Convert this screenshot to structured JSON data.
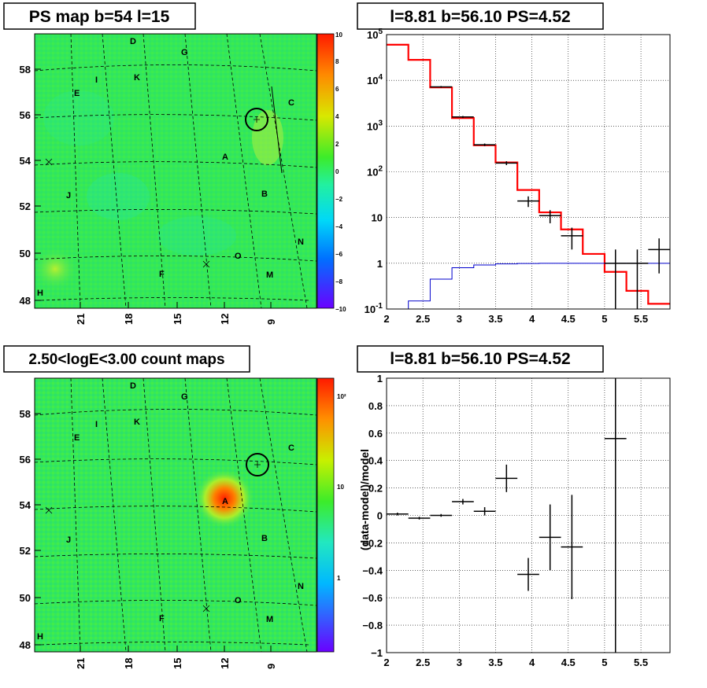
{
  "colors": {
    "map_background": "#33e85a",
    "data_points": "#000000",
    "model_line": "#ff0000",
    "background_line": "#0000cc"
  },
  "panels": {
    "ps_map": {
      "title": "PS map b=54 l=15",
      "colorbar_ticks": [
        "10",
        "8",
        "6",
        "4",
        "2",
        "0",
        "−2",
        "−4",
        "−6",
        "−8",
        "−10"
      ],
      "y_ticks": [
        "58",
        "56",
        "54",
        "52",
        "50",
        "48"
      ],
      "x_ticks": [
        "21",
        "18",
        "15",
        "12",
        "9"
      ],
      "region_labels": [
        "D",
        "G",
        "K",
        "I",
        "E",
        "C",
        "A",
        "J",
        "B",
        "N",
        "O",
        "F",
        "M",
        "H"
      ]
    },
    "spectrum": {
      "title": "l=8.81 b=56.10 PS=4.52"
    },
    "count_map": {
      "title": "2.50<logE<3.00 count maps",
      "colorbar_ticks": [
        "10²",
        "10",
        "1"
      ],
      "y_ticks": [
        "58",
        "56",
        "54",
        "52",
        "50",
        "48"
      ],
      "x_ticks": [
        "21",
        "18",
        "15",
        "12",
        "9"
      ],
      "region_labels": [
        "D",
        "G",
        "K",
        "I",
        "E",
        "C",
        "A",
        "J",
        "B",
        "N",
        "O",
        "F",
        "M",
        "H"
      ]
    },
    "residual": {
      "title": "l=8.81 b=56.10 PS=4.52"
    }
  },
  "chart_data": [
    {
      "type": "line",
      "panel": "spectrum",
      "title": "l=8.81 b=56.10 PS=4.52",
      "xlabel": "",
      "ylabel": "",
      "xlim": [
        2,
        5.9
      ],
      "ylim": [
        0.1,
        100000
      ],
      "y_scale": "log",
      "grid": true,
      "x_tick_labels": [
        "2",
        "2.5",
        "3",
        "3.5",
        "4",
        "4.5",
        "5",
        "5.5"
      ],
      "y_tick_labels": [
        "10^-1",
        "1",
        "10",
        "10^2",
        "10^3",
        "10^4",
        "10^5"
      ],
      "series": [
        {
          "style": "step",
          "bin_edges": [
            2.0,
            2.3,
            2.6,
            2.9,
            3.2,
            3.5,
            3.8,
            4.1,
            4.4,
            4.7,
            5.0,
            5.3,
            5.6,
            5.9
          ],
          "values": [
            60000,
            28000,
            7000,
            1500,
            380,
            160,
            40,
            13,
            5.5,
            1.6,
            0.65,
            0.25,
            0.13
          ]
        },
        {
          "style": "step",
          "bin_edges": [
            2.0,
            2.3,
            2.6,
            2.9,
            3.2,
            3.5,
            3.8,
            4.1,
            4.4,
            4.7,
            5.0,
            5.3,
            5.6,
            5.9
          ],
          "values": [
            0.1,
            0.15,
            0.45,
            0.8,
            0.92,
            0.97,
            0.99,
            1.0,
            1.0,
            1.0,
            1.0,
            1.0,
            1.0
          ]
        },
        {
          "style": "errorbar",
          "x": [
            2.75,
            3.05,
            3.35,
            3.65,
            3.95,
            4.25,
            4.55,
            5.15,
            5.45,
            5.75
          ],
          "y": [
            7200,
            1580,
            390,
            155,
            23,
            11,
            4.0,
            1.0,
            1.0,
            2.0
          ],
          "ylo": [
            6900,
            1500,
            365,
            140,
            17,
            7.5,
            2.0,
            0.1,
            0.1,
            0.6
          ],
          "yhi": [
            7500,
            1660,
            415,
            170,
            29,
            14.5,
            6.0,
            2.0,
            2.0,
            3.5
          ],
          "xerr": 0.15
        }
      ]
    },
    {
      "type": "scatter",
      "panel": "residual",
      "title": "l=8.81 b=56.10 PS=4.52",
      "xlabel": "",
      "ylabel": "(data-model)/model",
      "xlim": [
        2,
        5.9
      ],
      "ylim": [
        -1,
        1
      ],
      "grid": true,
      "x_tick_labels": [
        "2",
        "2.5",
        "3",
        "3.5",
        "4",
        "4.5",
        "5",
        "5.5"
      ],
      "y_tick_labels": [
        "−1",
        "−0.8",
        "−0.6",
        "−0.4",
        "−0.2",
        "0",
        "0.2",
        "0.4",
        "0.6",
        "0.8",
        "1"
      ],
      "series": [
        {
          "style": "errorbar",
          "x": [
            2.15,
            2.45,
            2.75,
            3.05,
            3.35,
            3.65,
            3.95,
            4.25,
            4.55,
            5.15
          ],
          "y": [
            0.01,
            -0.02,
            0.0,
            0.1,
            0.03,
            0.27,
            -0.43,
            -0.16,
            -0.23,
            0.56
          ],
          "ylo": [
            0.0,
            -0.03,
            -0.01,
            0.08,
            0.0,
            0.17,
            -0.55,
            -0.4,
            -0.61,
            -1.0
          ],
          "yhi": [
            0.02,
            -0.01,
            0.01,
            0.12,
            0.06,
            0.37,
            -0.31,
            0.08,
            0.15,
            1.0
          ],
          "xerr": 0.15
        }
      ]
    }
  ]
}
